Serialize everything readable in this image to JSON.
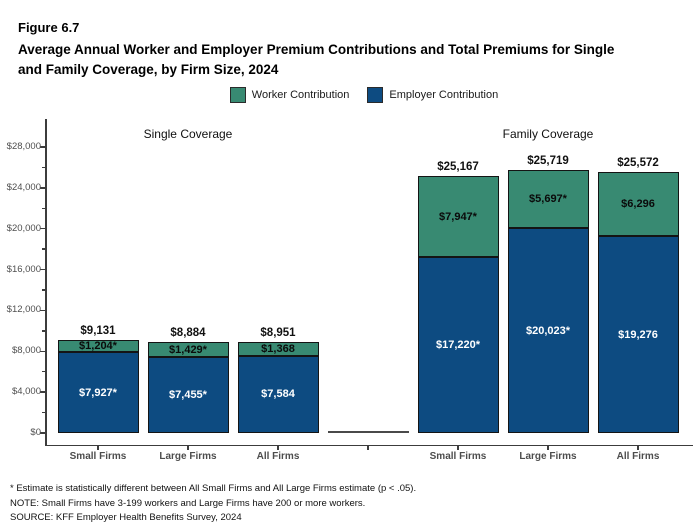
{
  "header": {
    "figure_label": "Figure 6.7",
    "title_line1": "Average Annual Worker and Employer Premium Contributions and Total Premiums for Single",
    "title_line2": "and Family Coverage, by Firm Size, 2024"
  },
  "legend": {
    "items": [
      {
        "label": "Worker Contribution",
        "color": "#388A72"
      },
      {
        "label": "Employer Contribution",
        "color": "#0D4B81"
      }
    ]
  },
  "chart_data": {
    "type": "bar",
    "stacked": true,
    "title": "Average Annual Worker and Employer Premium Contributions and Total Premiums for Single and Family Coverage, by Firm Size, 2024",
    "xlabel": "",
    "ylabel": "",
    "ylim": [
      0,
      28000
    ],
    "grid": false,
    "legend_position": "top-center",
    "series": [
      "Worker Contribution",
      "Employer Contribution"
    ],
    "colors": {
      "worker": "#388A72",
      "employer": "#0D4B81"
    },
    "y_ticks": [
      {
        "value": 0,
        "label": "$0"
      },
      {
        "value": 4000,
        "label": "$4,000"
      },
      {
        "value": 8000,
        "label": "$8,000"
      },
      {
        "value": 12000,
        "label": "$12,000"
      },
      {
        "value": 16000,
        "label": "$16,000"
      },
      {
        "value": 20000,
        "label": "$20,000"
      },
      {
        "value": 24000,
        "label": "$24,000"
      },
      {
        "value": 28000,
        "label": "$28,000"
      }
    ],
    "y_minor_ticks": [
      2000,
      6000,
      10000,
      14000,
      18000,
      22000,
      26000
    ],
    "groups": [
      {
        "title": "Single Coverage",
        "bars": [
          {
            "category": "Small Firms",
            "worker": 1204,
            "employer": 7927,
            "total": 9131,
            "worker_label": "$1,204*",
            "employer_label": "$7,927*",
            "total_label": "$9,131"
          },
          {
            "category": "Large Firms",
            "worker": 1429,
            "employer": 7455,
            "total": 8884,
            "worker_label": "$1,429*",
            "employer_label": "$7,455*",
            "total_label": "$8,884"
          },
          {
            "category": "All Firms",
            "worker": 1368,
            "employer": 7584,
            "total": 8951,
            "worker_label": "$1,368",
            "employer_label": "$7,584",
            "total_label": "$8,951"
          }
        ]
      },
      {
        "title": "Family Coverage",
        "bars": [
          {
            "category": "Small Firms",
            "worker": 7947,
            "employer": 17220,
            "total": 25167,
            "worker_label": "$7,947*",
            "employer_label": "$17,220*",
            "total_label": "$25,167"
          },
          {
            "category": "Large Firms",
            "worker": 5697,
            "employer": 20023,
            "total": 25719,
            "worker_label": "$5,697*",
            "employer_label": "$20,023*",
            "total_label": "$25,719"
          },
          {
            "category": "All Firms",
            "worker": 6296,
            "employer": 19276,
            "total": 25572,
            "worker_label": "$6,296",
            "employer_label": "$19,276",
            "total_label": "$25,572"
          }
        ]
      }
    ]
  },
  "footnotes": {
    "line1": "* Estimate is statistically different between All Small Firms and All Large Firms estimate (p < .05).",
    "line2": "NOTE: Small Firms have 3-199 workers and Large Firms have 200 or more workers.",
    "line3": "SOURCE: KFF Employer Health Benefits Survey, 2024"
  }
}
